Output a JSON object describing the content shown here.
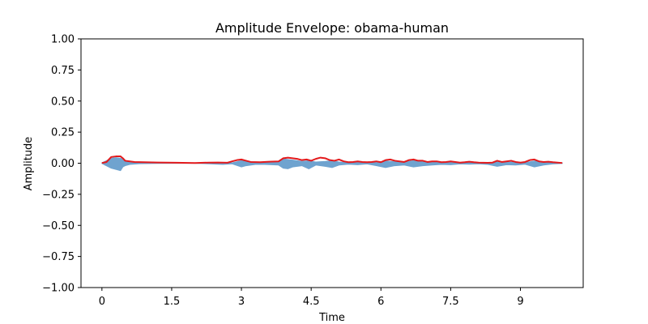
{
  "chart_data": {
    "type": "line",
    "title": "Amplitude Envelope: obama-human",
    "xlabel": "Time",
    "ylabel": "Amplitude",
    "xlim": [
      -0.45,
      10.35
    ],
    "ylim": [
      -1.0,
      1.0
    ],
    "x_ticks": [
      0,
      1.5,
      3,
      4.5,
      6,
      7.5,
      9
    ],
    "x_tick_labels": [
      "0",
      "1.5",
      "3",
      "4.5",
      "6",
      "7.5",
      "9"
    ],
    "y_ticks": [
      1.0,
      0.75,
      0.5,
      0.25,
      0.0,
      -0.25,
      -0.5,
      -0.75,
      -1.0
    ],
    "y_tick_labels": [
      "1.00",
      "0.75",
      "0.50",
      "0.25",
      "0.00",
      "−0.25",
      "−0.50",
      "−0.75",
      "−1.00"
    ],
    "grid": false,
    "waveform_color": "#6fa3cf",
    "envelope_color": "#e31a1c",
    "waveform": {
      "x": [
        0.0,
        0.2,
        0.3,
        0.4,
        0.45,
        0.5,
        0.6,
        0.8,
        1.2,
        1.6,
        2.0,
        2.3,
        2.6,
        2.8,
        3.0,
        3.1,
        3.3,
        3.5,
        3.8,
        3.9,
        4.0,
        4.1,
        4.2,
        4.3,
        4.45,
        4.6,
        4.8,
        4.95,
        5.1,
        5.3,
        5.5,
        5.7,
        5.9,
        6.1,
        6.3,
        6.5,
        6.7,
        6.9,
        7.1,
        7.3,
        7.5,
        7.7,
        7.9,
        8.1,
        8.3,
        8.5,
        8.7,
        8.9,
        9.1,
        9.3,
        9.5,
        9.7,
        9.9
      ],
      "upper": [
        0.002,
        0.04,
        0.045,
        0.04,
        0.03,
        0.02,
        0.01,
        0.004,
        0.002,
        0.001,
        0.001,
        0.005,
        0.006,
        0.003,
        0.02,
        0.015,
        0.01,
        0.008,
        0.01,
        0.035,
        0.03,
        0.025,
        0.02,
        0.015,
        0.02,
        0.01,
        0.015,
        0.02,
        0.01,
        0.005,
        0.01,
        0.004,
        0.006,
        0.018,
        0.012,
        0.01,
        0.02,
        0.012,
        0.01,
        0.005,
        0.008,
        0.003,
        0.005,
        0.003,
        0.004,
        0.01,
        0.008,
        0.01,
        0.005,
        0.018,
        0.01,
        0.005,
        0.002
      ],
      "lower": [
        -0.002,
        -0.04,
        -0.05,
        -0.06,
        -0.03,
        -0.02,
        -0.01,
        -0.004,
        -0.002,
        -0.001,
        -0.001,
        -0.005,
        -0.01,
        -0.005,
        -0.03,
        -0.02,
        -0.01,
        -0.01,
        -0.015,
        -0.04,
        -0.045,
        -0.03,
        -0.025,
        -0.02,
        -0.045,
        -0.015,
        -0.025,
        -0.035,
        -0.015,
        -0.008,
        -0.012,
        -0.006,
        -0.02,
        -0.035,
        -0.02,
        -0.015,
        -0.03,
        -0.02,
        -0.015,
        -0.01,
        -0.012,
        -0.006,
        -0.008,
        -0.005,
        -0.01,
        -0.025,
        -0.012,
        -0.015,
        -0.008,
        -0.03,
        -0.015,
        -0.006,
        -0.002
      ]
    },
    "envelope": {
      "x": [
        0.0,
        0.1,
        0.2,
        0.3,
        0.4,
        0.45,
        0.5,
        0.6,
        0.7,
        0.9,
        1.2,
        1.6,
        2.0,
        2.3,
        2.5,
        2.7,
        2.8,
        2.9,
        3.0,
        3.1,
        3.2,
        3.4,
        3.6,
        3.8,
        3.9,
        4.0,
        4.1,
        4.2,
        4.3,
        4.4,
        4.5,
        4.6,
        4.7,
        4.8,
        4.9,
        5.0,
        5.1,
        5.2,
        5.3,
        5.4,
        5.5,
        5.6,
        5.7,
        5.8,
        5.9,
        6.0,
        6.1,
        6.2,
        6.3,
        6.4,
        6.5,
        6.6,
        6.7,
        6.8,
        6.9,
        7.0,
        7.1,
        7.2,
        7.3,
        7.4,
        7.5,
        7.6,
        7.7,
        7.8,
        7.9,
        8.0,
        8.1,
        8.2,
        8.3,
        8.4,
        8.5,
        8.6,
        8.7,
        8.8,
        8.9,
        9.0,
        9.1,
        9.2,
        9.3,
        9.4,
        9.5,
        9.6,
        9.7,
        9.8,
        9.9
      ],
      "y": [
        0.002,
        0.01,
        0.05,
        0.055,
        0.055,
        0.04,
        0.02,
        0.015,
        0.01,
        0.008,
        0.006,
        0.004,
        0.002,
        0.005,
        0.006,
        0.004,
        0.015,
        0.025,
        0.03,
        0.02,
        0.01,
        0.008,
        0.012,
        0.015,
        0.04,
        0.045,
        0.04,
        0.035,
        0.025,
        0.03,
        0.02,
        0.035,
        0.045,
        0.04,
        0.025,
        0.02,
        0.03,
        0.015,
        0.008,
        0.01,
        0.015,
        0.01,
        0.008,
        0.01,
        0.015,
        0.008,
        0.025,
        0.03,
        0.02,
        0.015,
        0.01,
        0.025,
        0.03,
        0.02,
        0.02,
        0.01,
        0.015,
        0.015,
        0.008,
        0.01,
        0.015,
        0.01,
        0.005,
        0.008,
        0.012,
        0.008,
        0.005,
        0.004,
        0.003,
        0.005,
        0.02,
        0.01,
        0.015,
        0.02,
        0.01,
        0.005,
        0.01,
        0.025,
        0.03,
        0.015,
        0.01,
        0.012,
        0.008,
        0.005,
        0.002
      ]
    }
  }
}
